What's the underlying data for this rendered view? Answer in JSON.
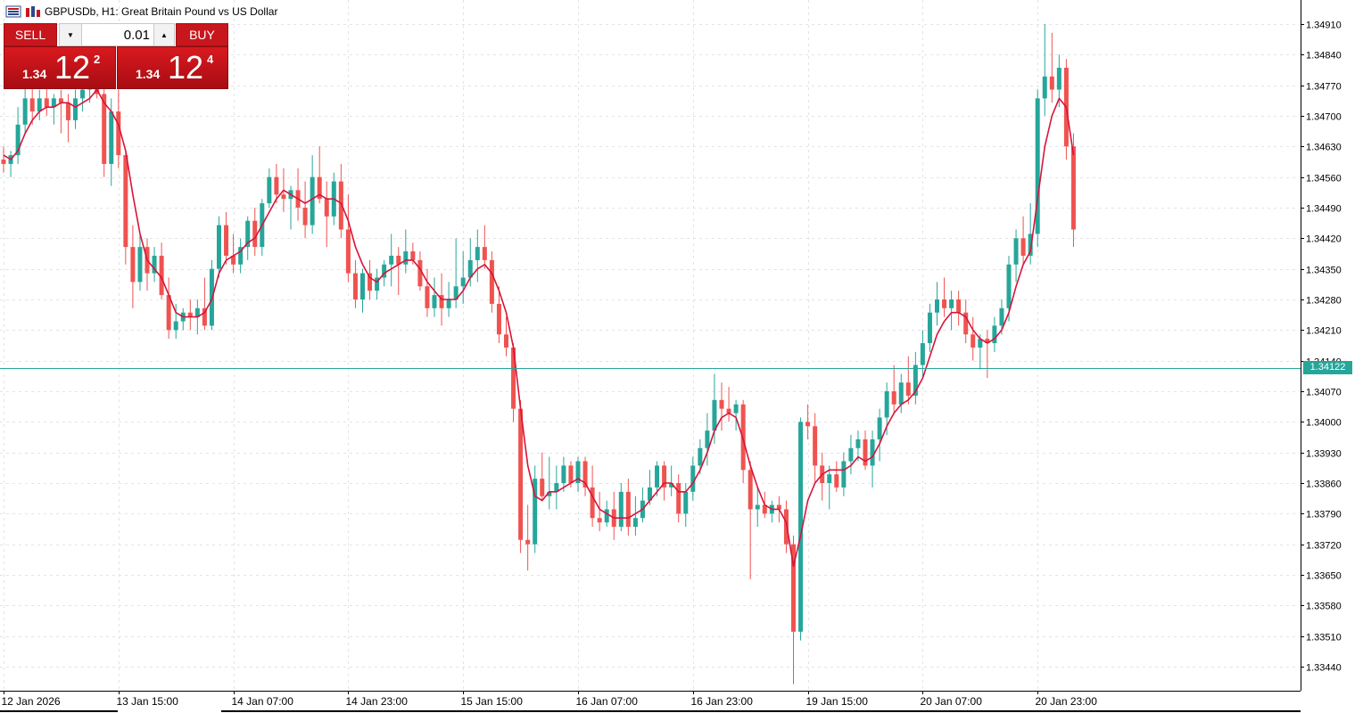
{
  "header": {
    "title": "GBPUSDb, H1:  Great Britain Pound vs US Dollar"
  },
  "trade_panel": {
    "sell_label": "SELL",
    "buy_label": "BUY",
    "lot_value": "0.01",
    "sell_price": {
      "prefix": "1.34",
      "big": "12",
      "sup": "2"
    },
    "buy_price": {
      "prefix": "1.34",
      "big": "12",
      "sup": "4"
    }
  },
  "current_price_label": "1.34122",
  "colors": {
    "bull": "#26a69a",
    "bear": "#ef5350",
    "ma": "#d6143a",
    "price_line": "#26a69a",
    "trade_red": "#c8161d"
  },
  "icons": [
    "chart-menu-icon",
    "symbol-icon",
    "chevron-down-icon",
    "chevron-up-icon"
  ],
  "chart_data": {
    "type": "candlestick",
    "symbol": "GBPUSDb",
    "timeframe": "H1",
    "current_price": 1.34122,
    "ylim": [
      1.33385,
      1.34965
    ],
    "y_ticks": [
      1.3491,
      1.3484,
      1.3477,
      1.347,
      1.3463,
      1.3456,
      1.3449,
      1.3442,
      1.3435,
      1.3428,
      1.3421,
      1.3414,
      1.3407,
      1.34,
      1.3393,
      1.3386,
      1.3379,
      1.3372,
      1.3365,
      1.3358,
      1.3351,
      1.3344
    ],
    "x_tick_labels": [
      "12 Jan 2026",
      "13 Jan 15:00",
      "14 Jan 07:00",
      "14 Jan 23:00",
      "15 Jan 15:00",
      "16 Jan 07:00",
      "16 Jan 23:00",
      "19 Jan 15:00",
      "20 Jan 07:00",
      "20 Jan 23:00"
    ],
    "x_tick_bar_index": [
      0,
      16,
      32,
      48,
      64,
      80,
      96,
      112,
      128,
      144
    ],
    "grid": true,
    "candles": [
      {
        "o": 1.346,
        "h": 1.3463,
        "l": 1.3457,
        "c": 1.3459
      },
      {
        "o": 1.3459,
        "h": 1.3462,
        "l": 1.3456,
        "c": 1.3461
      },
      {
        "o": 1.3461,
        "h": 1.3472,
        "l": 1.3459,
        "c": 1.3468
      },
      {
        "o": 1.3468,
        "h": 1.3478,
        "l": 1.3466,
        "c": 1.3474
      },
      {
        "o": 1.3474,
        "h": 1.348,
        "l": 1.3468,
        "c": 1.3471
      },
      {
        "o": 1.3471,
        "h": 1.3476,
        "l": 1.3469,
        "c": 1.3474
      },
      {
        "o": 1.3474,
        "h": 1.3477,
        "l": 1.347,
        "c": 1.3472
      },
      {
        "o": 1.3472,
        "h": 1.3475,
        "l": 1.3468,
        "c": 1.3474
      },
      {
        "o": 1.3474,
        "h": 1.3476,
        "l": 1.3466,
        "c": 1.3473
      },
      {
        "o": 1.3473,
        "h": 1.3475,
        "l": 1.3464,
        "c": 1.3469
      },
      {
        "o": 1.3469,
        "h": 1.3476,
        "l": 1.3467,
        "c": 1.3474
      },
      {
        "o": 1.3474,
        "h": 1.3478,
        "l": 1.3471,
        "c": 1.3476
      },
      {
        "o": 1.3476,
        "h": 1.348,
        "l": 1.3473,
        "c": 1.3477
      },
      {
        "o": 1.3477,
        "h": 1.348,
        "l": 1.3474,
        "c": 1.3475
      },
      {
        "o": 1.3475,
        "h": 1.3477,
        "l": 1.3456,
        "c": 1.3459
      },
      {
        "o": 1.3459,
        "h": 1.3474,
        "l": 1.3454,
        "c": 1.3471
      },
      {
        "o": 1.3471,
        "h": 1.3476,
        "l": 1.3458,
        "c": 1.3461
      },
      {
        "o": 1.3461,
        "h": 1.3462,
        "l": 1.3436,
        "c": 1.344
      },
      {
        "o": 1.344,
        "h": 1.3445,
        "l": 1.3426,
        "c": 1.3432
      },
      {
        "o": 1.3432,
        "h": 1.3443,
        "l": 1.343,
        "c": 1.344
      },
      {
        "o": 1.344,
        "h": 1.3442,
        "l": 1.343,
        "c": 1.3434
      },
      {
        "o": 1.3434,
        "h": 1.344,
        "l": 1.3432,
        "c": 1.3438
      },
      {
        "o": 1.3438,
        "h": 1.3441,
        "l": 1.3428,
        "c": 1.3429
      },
      {
        "o": 1.3429,
        "h": 1.3433,
        "l": 1.3419,
        "c": 1.3421
      },
      {
        "o": 1.3421,
        "h": 1.3427,
        "l": 1.3419,
        "c": 1.3423
      },
      {
        "o": 1.3423,
        "h": 1.3426,
        "l": 1.3421,
        "c": 1.3425
      },
      {
        "o": 1.3425,
        "h": 1.3428,
        "l": 1.3421,
        "c": 1.3424
      },
      {
        "o": 1.3424,
        "h": 1.3428,
        "l": 1.342,
        "c": 1.3426
      },
      {
        "o": 1.3426,
        "h": 1.3433,
        "l": 1.3421,
        "c": 1.3422
      },
      {
        "o": 1.3422,
        "h": 1.3437,
        "l": 1.3421,
        "c": 1.3435
      },
      {
        "o": 1.3435,
        "h": 1.3447,
        "l": 1.3433,
        "c": 1.3445
      },
      {
        "o": 1.3445,
        "h": 1.3448,
        "l": 1.3436,
        "c": 1.3438
      },
      {
        "o": 1.3438,
        "h": 1.3443,
        "l": 1.3434,
        "c": 1.3436
      },
      {
        "o": 1.3436,
        "h": 1.3442,
        "l": 1.3434,
        "c": 1.344
      },
      {
        "o": 1.344,
        "h": 1.3447,
        "l": 1.3437,
        "c": 1.3446
      },
      {
        "o": 1.3446,
        "h": 1.3449,
        "l": 1.3438,
        "c": 1.344
      },
      {
        "o": 1.344,
        "h": 1.3451,
        "l": 1.3438,
        "c": 1.345
      },
      {
        "o": 1.345,
        "h": 1.3458,
        "l": 1.3449,
        "c": 1.3456
      },
      {
        "o": 1.3456,
        "h": 1.3459,
        "l": 1.345,
        "c": 1.3452
      },
      {
        "o": 1.3452,
        "h": 1.3458,
        "l": 1.3448,
        "c": 1.3451
      },
      {
        "o": 1.3451,
        "h": 1.3454,
        "l": 1.3444,
        "c": 1.3453
      },
      {
        "o": 1.3453,
        "h": 1.3458,
        "l": 1.3446,
        "c": 1.3449
      },
      {
        "o": 1.3449,
        "h": 1.3455,
        "l": 1.3442,
        "c": 1.3445
      },
      {
        "o": 1.3445,
        "h": 1.3461,
        "l": 1.3443,
        "c": 1.3456
      },
      {
        "o": 1.3456,
        "h": 1.3463,
        "l": 1.345,
        "c": 1.3451
      },
      {
        "o": 1.3451,
        "h": 1.3455,
        "l": 1.344,
        "c": 1.3447
      },
      {
        "o": 1.3447,
        "h": 1.3457,
        "l": 1.3445,
        "c": 1.3455
      },
      {
        "o": 1.3455,
        "h": 1.3459,
        "l": 1.3442,
        "c": 1.3444
      },
      {
        "o": 1.3444,
        "h": 1.3452,
        "l": 1.3432,
        "c": 1.3434
      },
      {
        "o": 1.3434,
        "h": 1.3437,
        "l": 1.3426,
        "c": 1.3428
      },
      {
        "o": 1.3428,
        "h": 1.3435,
        "l": 1.3425,
        "c": 1.3434
      },
      {
        "o": 1.3434,
        "h": 1.3437,
        "l": 1.3428,
        "c": 1.343
      },
      {
        "o": 1.343,
        "h": 1.3435,
        "l": 1.3428,
        "c": 1.3433
      },
      {
        "o": 1.3433,
        "h": 1.3437,
        "l": 1.3431,
        "c": 1.3436
      },
      {
        "o": 1.3436,
        "h": 1.3443,
        "l": 1.3431,
        "c": 1.3438
      },
      {
        "o": 1.3438,
        "h": 1.344,
        "l": 1.3429,
        "c": 1.3436
      },
      {
        "o": 1.3436,
        "h": 1.3444,
        "l": 1.3434,
        "c": 1.3439
      },
      {
        "o": 1.3439,
        "h": 1.3441,
        "l": 1.3436,
        "c": 1.3437
      },
      {
        "o": 1.3437,
        "h": 1.3439,
        "l": 1.343,
        "c": 1.3431
      },
      {
        "o": 1.3431,
        "h": 1.3435,
        "l": 1.3424,
        "c": 1.3426
      },
      {
        "o": 1.3426,
        "h": 1.3433,
        "l": 1.3424,
        "c": 1.3429
      },
      {
        "o": 1.3429,
        "h": 1.3434,
        "l": 1.3422,
        "c": 1.3426
      },
      {
        "o": 1.3426,
        "h": 1.3432,
        "l": 1.3424,
        "c": 1.3428
      },
      {
        "o": 1.3428,
        "h": 1.3442,
        "l": 1.3426,
        "c": 1.3431
      },
      {
        "o": 1.3431,
        "h": 1.3439,
        "l": 1.3427,
        "c": 1.3433
      },
      {
        "o": 1.3433,
        "h": 1.3442,
        "l": 1.3431,
        "c": 1.3437
      },
      {
        "o": 1.3437,
        "h": 1.3444,
        "l": 1.3432,
        "c": 1.344
      },
      {
        "o": 1.344,
        "h": 1.3445,
        "l": 1.3435,
        "c": 1.3437
      },
      {
        "o": 1.3437,
        "h": 1.3439,
        "l": 1.3425,
        "c": 1.3427
      },
      {
        "o": 1.3427,
        "h": 1.3431,
        "l": 1.3418,
        "c": 1.342
      },
      {
        "o": 1.342,
        "h": 1.3424,
        "l": 1.3415,
        "c": 1.3417
      },
      {
        "o": 1.3417,
        "h": 1.3418,
        "l": 1.34,
        "c": 1.3403
      },
      {
        "o": 1.3403,
        "h": 1.3405,
        "l": 1.337,
        "c": 1.3373
      },
      {
        "o": 1.3373,
        "h": 1.3381,
        "l": 1.3366,
        "c": 1.3372
      },
      {
        "o": 1.3372,
        "h": 1.339,
        "l": 1.337,
        "c": 1.3387
      },
      {
        "o": 1.3387,
        "h": 1.3393,
        "l": 1.3382,
        "c": 1.3383
      },
      {
        "o": 1.3383,
        "h": 1.3392,
        "l": 1.338,
        "c": 1.3384
      },
      {
        "o": 1.3384,
        "h": 1.339,
        "l": 1.338,
        "c": 1.3386
      },
      {
        "o": 1.3386,
        "h": 1.3392,
        "l": 1.3384,
        "c": 1.339
      },
      {
        "o": 1.339,
        "h": 1.3391,
        "l": 1.3385,
        "c": 1.3386
      },
      {
        "o": 1.3386,
        "h": 1.3392,
        "l": 1.3384,
        "c": 1.3391
      },
      {
        "o": 1.3391,
        "h": 1.3392,
        "l": 1.3383,
        "c": 1.3385
      },
      {
        "o": 1.3385,
        "h": 1.339,
        "l": 1.3376,
        "c": 1.3378
      },
      {
        "o": 1.3378,
        "h": 1.3384,
        "l": 1.3375,
        "c": 1.3377
      },
      {
        "o": 1.3377,
        "h": 1.3382,
        "l": 1.3376,
        "c": 1.338
      },
      {
        "o": 1.338,
        "h": 1.3384,
        "l": 1.3373,
        "c": 1.3376
      },
      {
        "o": 1.3376,
        "h": 1.3386,
        "l": 1.3375,
        "c": 1.3384
      },
      {
        "o": 1.3384,
        "h": 1.3387,
        "l": 1.3374,
        "c": 1.3376
      },
      {
        "o": 1.3376,
        "h": 1.3383,
        "l": 1.3374,
        "c": 1.3378
      },
      {
        "o": 1.3378,
        "h": 1.3385,
        "l": 1.3377,
        "c": 1.3382
      },
      {
        "o": 1.3382,
        "h": 1.3389,
        "l": 1.3381,
        "c": 1.3385
      },
      {
        "o": 1.3385,
        "h": 1.3391,
        "l": 1.3383,
        "c": 1.339
      },
      {
        "o": 1.339,
        "h": 1.3391,
        "l": 1.3382,
        "c": 1.3385
      },
      {
        "o": 1.3385,
        "h": 1.339,
        "l": 1.3383,
        "c": 1.3386
      },
      {
        "o": 1.3386,
        "h": 1.3388,
        "l": 1.3377,
        "c": 1.3379
      },
      {
        "o": 1.3379,
        "h": 1.3386,
        "l": 1.3376,
        "c": 1.3384
      },
      {
        "o": 1.3384,
        "h": 1.3392,
        "l": 1.3382,
        "c": 1.339
      },
      {
        "o": 1.339,
        "h": 1.3396,
        "l": 1.3388,
        "c": 1.3394
      },
      {
        "o": 1.3394,
        "h": 1.3402,
        "l": 1.339,
        "c": 1.3398
      },
      {
        "o": 1.3398,
        "h": 1.3411,
        "l": 1.3395,
        "c": 1.3405
      },
      {
        "o": 1.3405,
        "h": 1.3409,
        "l": 1.3398,
        "c": 1.3403
      },
      {
        "o": 1.3403,
        "h": 1.3408,
        "l": 1.34,
        "c": 1.3402
      },
      {
        "o": 1.3402,
        "h": 1.3405,
        "l": 1.3398,
        "c": 1.3404
      },
      {
        "o": 1.3404,
        "h": 1.3405,
        "l": 1.3386,
        "c": 1.3389
      },
      {
        "o": 1.3389,
        "h": 1.3391,
        "l": 1.3364,
        "c": 1.338
      },
      {
        "o": 1.338,
        "h": 1.3385,
        "l": 1.3376,
        "c": 1.3381
      },
      {
        "o": 1.3381,
        "h": 1.3384,
        "l": 1.3378,
        "c": 1.3379
      },
      {
        "o": 1.3379,
        "h": 1.3382,
        "l": 1.3377,
        "c": 1.3381
      },
      {
        "o": 1.3381,
        "h": 1.3383,
        "l": 1.3377,
        "c": 1.338
      },
      {
        "o": 1.338,
        "h": 1.3382,
        "l": 1.337,
        "c": 1.3372
      },
      {
        "o": 1.3372,
        "h": 1.3374,
        "l": 1.334,
        "c": 1.3352
      },
      {
        "o": 1.3352,
        "h": 1.3401,
        "l": 1.335,
        "c": 1.34
      },
      {
        "o": 1.34,
        "h": 1.3404,
        "l": 1.3396,
        "c": 1.3399
      },
      {
        "o": 1.3399,
        "h": 1.3402,
        "l": 1.3386,
        "c": 1.339
      },
      {
        "o": 1.339,
        "h": 1.3393,
        "l": 1.3382,
        "c": 1.3386
      },
      {
        "o": 1.3386,
        "h": 1.339,
        "l": 1.338,
        "c": 1.3388
      },
      {
        "o": 1.3388,
        "h": 1.3391,
        "l": 1.3384,
        "c": 1.3385
      },
      {
        "o": 1.3385,
        "h": 1.3393,
        "l": 1.3383,
        "c": 1.3391
      },
      {
        "o": 1.3391,
        "h": 1.3397,
        "l": 1.3388,
        "c": 1.3394
      },
      {
        "o": 1.3394,
        "h": 1.3398,
        "l": 1.3391,
        "c": 1.3396
      },
      {
        "o": 1.3396,
        "h": 1.3398,
        "l": 1.3389,
        "c": 1.339
      },
      {
        "o": 1.339,
        "h": 1.3398,
        "l": 1.3385,
        "c": 1.3396
      },
      {
        "o": 1.3396,
        "h": 1.3403,
        "l": 1.3391,
        "c": 1.3401
      },
      {
        "o": 1.3401,
        "h": 1.3409,
        "l": 1.3397,
        "c": 1.3407
      },
      {
        "o": 1.3407,
        "h": 1.3413,
        "l": 1.3402,
        "c": 1.3404
      },
      {
        "o": 1.3404,
        "h": 1.3411,
        "l": 1.3402,
        "c": 1.3409
      },
      {
        "o": 1.3409,
        "h": 1.3415,
        "l": 1.3404,
        "c": 1.3406
      },
      {
        "o": 1.3406,
        "h": 1.3416,
        "l": 1.3404,
        "c": 1.3413
      },
      {
        "o": 1.3413,
        "h": 1.3421,
        "l": 1.341,
        "c": 1.3418
      },
      {
        "o": 1.3418,
        "h": 1.3427,
        "l": 1.3416,
        "c": 1.3425
      },
      {
        "o": 1.3425,
        "h": 1.3432,
        "l": 1.3422,
        "c": 1.3428
      },
      {
        "o": 1.3428,
        "h": 1.3433,
        "l": 1.3424,
        "c": 1.3426
      },
      {
        "o": 1.3426,
        "h": 1.343,
        "l": 1.3421,
        "c": 1.3428
      },
      {
        "o": 1.3428,
        "h": 1.343,
        "l": 1.3422,
        "c": 1.3425
      },
      {
        "o": 1.3425,
        "h": 1.3428,
        "l": 1.3418,
        "c": 1.342
      },
      {
        "o": 1.342,
        "h": 1.3424,
        "l": 1.3414,
        "c": 1.3417
      },
      {
        "o": 1.3417,
        "h": 1.342,
        "l": 1.3412,
        "c": 1.3419
      },
      {
        "o": 1.3419,
        "h": 1.3421,
        "l": 1.341,
        "c": 1.3418
      },
      {
        "o": 1.3418,
        "h": 1.3424,
        "l": 1.3416,
        "c": 1.3422
      },
      {
        "o": 1.3422,
        "h": 1.3428,
        "l": 1.342,
        "c": 1.3426
      },
      {
        "o": 1.3426,
        "h": 1.3438,
        "l": 1.3423,
        "c": 1.3436
      },
      {
        "o": 1.3436,
        "h": 1.3444,
        "l": 1.3432,
        "c": 1.3442
      },
      {
        "o": 1.3442,
        "h": 1.3447,
        "l": 1.3436,
        "c": 1.3438
      },
      {
        "o": 1.3438,
        "h": 1.345,
        "l": 1.3436,
        "c": 1.3443
      },
      {
        "o": 1.3443,
        "h": 1.3476,
        "l": 1.344,
        "c": 1.3474
      },
      {
        "o": 1.3474,
        "h": 1.3491,
        "l": 1.347,
        "c": 1.3479
      },
      {
        "o": 1.3479,
        "h": 1.3489,
        "l": 1.3473,
        "c": 1.3476
      },
      {
        "o": 1.3476,
        "h": 1.3484,
        "l": 1.3472,
        "c": 1.3481
      },
      {
        "o": 1.3481,
        "h": 1.3483,
        "l": 1.346,
        "c": 1.3463
      },
      {
        "o": 1.3463,
        "h": 1.3466,
        "l": 1.344,
        "c": 1.3444
      }
    ],
    "moving_average": {
      "values": [
        1.3461,
        1.346,
        1.3462,
        1.3466,
        1.3469,
        1.3471,
        1.3472,
        1.3472,
        1.3473,
        1.3473,
        1.3472,
        1.3473,
        1.3474,
        1.3476,
        1.3473,
        1.3471,
        1.3468,
        1.3462,
        1.3452,
        1.3443,
        1.3437,
        1.3435,
        1.3433,
        1.3429,
        1.3425,
        1.3424,
        1.3424,
        1.3424,
        1.3425,
        1.3428,
        1.3434,
        1.3437,
        1.3438,
        1.3439,
        1.3441,
        1.3442,
        1.3445,
        1.3448,
        1.3451,
        1.3453,
        1.3452,
        1.3451,
        1.345,
        1.3451,
        1.3452,
        1.3451,
        1.3451,
        1.345,
        1.3446,
        1.344,
        1.3436,
        1.3433,
        1.3432,
        1.3434,
        1.3435,
        1.3436,
        1.3437,
        1.3437,
        1.3435,
        1.3432,
        1.343,
        1.3428,
        1.3428,
        1.3428,
        1.343,
        1.3433,
        1.3435,
        1.3436,
        1.3434,
        1.343,
        1.3425,
        1.3417,
        1.3403,
        1.339,
        1.3383,
        1.3382,
        1.3384,
        1.3384,
        1.3385,
        1.3386,
        1.3387,
        1.3386,
        1.3383,
        1.338,
        1.3379,
        1.3378,
        1.3378,
        1.3378,
        1.3379,
        1.338,
        1.3382,
        1.3384,
        1.3386,
        1.3386,
        1.3384,
        1.3384,
        1.3386,
        1.3389,
        1.3393,
        1.3398,
        1.3401,
        1.3402,
        1.3401,
        1.3396,
        1.339,
        1.3385,
        1.3381,
        1.338,
        1.338,
        1.3377,
        1.3367,
        1.3374,
        1.3382,
        1.3386,
        1.3388,
        1.3389,
        1.3389,
        1.3389,
        1.339,
        1.3392,
        1.3391,
        1.3392,
        1.3395,
        1.3399,
        1.3402,
        1.3404,
        1.3405,
        1.3407,
        1.341,
        1.3415,
        1.342,
        1.3423,
        1.3425,
        1.3425,
        1.3424,
        1.3421,
        1.3419,
        1.3418,
        1.3419,
        1.3421,
        1.3425,
        1.3431,
        1.3436,
        1.3439,
        1.3451,
        1.3463,
        1.347,
        1.3474,
        1.3472,
        1.3461
      ]
    }
  }
}
